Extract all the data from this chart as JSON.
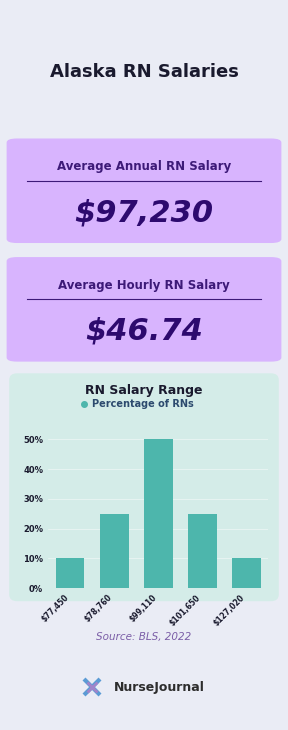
{
  "title": "Alaska RN Salaries",
  "title_color": "#1a1a2e",
  "bg_color": "#eaecf5",
  "box1_bg": "#d8b4fe",
  "box1_label": "Average Annual RN Salary",
  "box1_value": "$97,230",
  "box2_bg": "#d8b4fe",
  "box2_label": "Average Hourly RN Salary",
  "box2_value": "$46.74",
  "box_label_color": "#3d1a78",
  "box_value_color": "#2d0a6e",
  "chart_bg": "#d4ece8",
  "chart_title": "RN Salary Range",
  "chart_legend": "Percentage of RNs",
  "chart_legend_color": "#2c4a6e",
  "chart_title_color": "#1a1a2e",
  "bar_color": "#4db6ac",
  "bar_categories": [
    "$77,450",
    "$78,760",
    "$99,110",
    "$101,650",
    "$127,020"
  ],
  "bar_values": [
    10,
    25,
    50,
    25,
    10
  ],
  "ytick_labels": [
    "0%",
    "10%",
    "20%",
    "30%",
    "40%",
    "50%"
  ],
  "ytick_values": [
    0,
    10,
    20,
    30,
    40,
    50
  ],
  "source_text": "Source: BLS, 2022",
  "source_color": "#7b5ea7",
  "logo_text": "NurseJournal",
  "logo_color": "#2d2d2d",
  "legend_dot_color": "#4db6ac"
}
